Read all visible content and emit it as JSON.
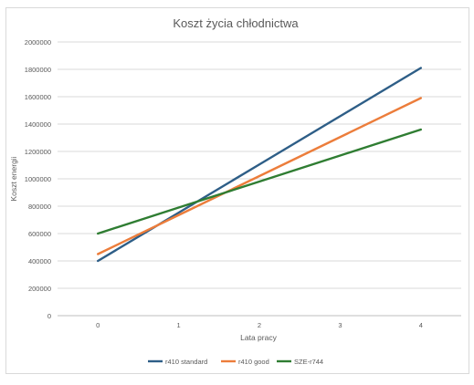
{
  "chart_data": {
    "type": "line",
    "title": "Koszt życia chłodnictwa",
    "xlabel": "Lata pracy",
    "ylabel": "Koszt energii",
    "x": [
      0,
      1,
      2,
      3,
      4
    ],
    "x_tick_labels": [
      "0",
      "1",
      "2",
      "3",
      "4"
    ],
    "ylim": [
      0,
      2000000
    ],
    "y_ticks": [
      0,
      200000,
      400000,
      600000,
      800000,
      1000000,
      1200000,
      1400000,
      1600000,
      1800000,
      2000000
    ],
    "y_tick_labels": [
      "0",
      "200000",
      "400000",
      "600000",
      "800000",
      "1000000",
      "1200000",
      "1400000",
      "1600000",
      "1800000",
      "2000000"
    ],
    "grid": true,
    "legend_position": "bottom",
    "series": [
      {
        "name": "r410 standard",
        "color": "#2e5e87",
        "values": [
          400000,
          752500,
          1105000,
          1457500,
          1810000
        ]
      },
      {
        "name": "r410 good",
        "color": "#ec7d3b",
        "values": [
          450000,
          735000,
          1020000,
          1305000,
          1590000
        ]
      },
      {
        "name": "SZE-r744",
        "color": "#2f7d32",
        "values": [
          600000,
          790000,
          980000,
          1170000,
          1360000
        ]
      }
    ]
  }
}
